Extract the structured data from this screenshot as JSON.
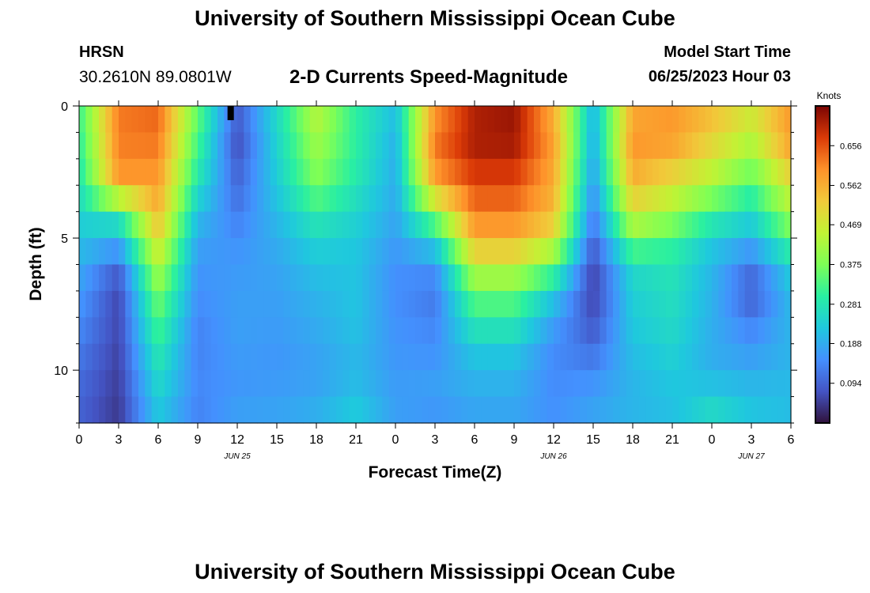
{
  "header": {
    "title": "University of Southern Mississippi Ocean Cube",
    "station": "HRSN",
    "coords": "30.2610N  89.0801W",
    "subtitle": "2-D Currents Speed-Magnitude",
    "model_start_label": "Model Start Time",
    "model_start_value": "06/25/2023 Hour 03"
  },
  "footer": {
    "title": "University of Southern Mississippi Ocean Cube"
  },
  "chart_data": {
    "type": "heatmap",
    "xlabel": "Forecast Time(Z)",
    "ylabel": "Depth (ft)",
    "x_ticks": [
      "0",
      "3",
      "6",
      "9",
      "12",
      "15",
      "18",
      "21",
      "0",
      "3",
      "6",
      "9",
      "12",
      "15",
      "18",
      "21",
      "0",
      "3",
      "6"
    ],
    "x_hours_range": [
      0,
      54
    ],
    "y_range": [
      0,
      12
    ],
    "y_ticks": [
      "0",
      "5",
      "10"
    ],
    "date_labels": [
      {
        "text": "JUN 25",
        "hour": 12
      },
      {
        "text": "JUN 26",
        "hour": 36
      },
      {
        "text": "JUN 27",
        "hour": 51
      }
    ],
    "colorbar": {
      "label": "Knots",
      "ticks": [
        "0.094",
        "0.188",
        "0.281",
        "0.375",
        "0.469",
        "0.562",
        "0.656"
      ],
      "range": [
        0,
        0.75
      ]
    },
    "columns_hours": [
      0,
      3,
      6,
      9,
      12,
      15,
      18,
      21,
      24,
      27,
      30,
      33,
      36,
      39,
      42,
      45,
      48,
      51,
      54
    ],
    "row_depths_ft": [
      0,
      1,
      2,
      3,
      4,
      5,
      6,
      7,
      8,
      9,
      10,
      11,
      12
    ],
    "grid_speed_knots": [
      [
        0.32,
        0.62,
        0.64,
        0.36,
        0.1,
        0.26,
        0.45,
        0.3,
        0.22,
        0.58,
        0.7,
        0.72,
        0.55,
        0.2,
        0.55,
        0.58,
        0.55,
        0.48,
        0.58
      ],
      [
        0.3,
        0.62,
        0.63,
        0.33,
        0.06,
        0.25,
        0.42,
        0.3,
        0.2,
        0.62,
        0.72,
        0.73,
        0.58,
        0.19,
        0.6,
        0.6,
        0.52,
        0.45,
        0.6
      ],
      [
        0.29,
        0.61,
        0.61,
        0.31,
        0.08,
        0.24,
        0.4,
        0.3,
        0.19,
        0.62,
        0.7,
        0.7,
        0.58,
        0.18,
        0.58,
        0.55,
        0.48,
        0.4,
        0.55
      ],
      [
        0.27,
        0.58,
        0.58,
        0.27,
        0.1,
        0.23,
        0.37,
        0.28,
        0.19,
        0.56,
        0.66,
        0.66,
        0.56,
        0.16,
        0.55,
        0.48,
        0.42,
        0.33,
        0.48
      ],
      [
        0.25,
        0.3,
        0.56,
        0.22,
        0.12,
        0.21,
        0.3,
        0.25,
        0.18,
        0.4,
        0.62,
        0.62,
        0.55,
        0.13,
        0.47,
        0.42,
        0.32,
        0.26,
        0.42
      ],
      [
        0.22,
        0.21,
        0.5,
        0.18,
        0.15,
        0.19,
        0.25,
        0.23,
        0.17,
        0.26,
        0.56,
        0.56,
        0.48,
        0.1,
        0.38,
        0.32,
        0.24,
        0.2,
        0.34
      ],
      [
        0.19,
        0.1,
        0.44,
        0.16,
        0.16,
        0.18,
        0.22,
        0.22,
        0.15,
        0.16,
        0.46,
        0.46,
        0.36,
        0.06,
        0.26,
        0.28,
        0.2,
        0.12,
        0.25
      ],
      [
        0.17,
        0.06,
        0.38,
        0.15,
        0.17,
        0.17,
        0.2,
        0.22,
        0.15,
        0.12,
        0.36,
        0.36,
        0.24,
        0.05,
        0.24,
        0.27,
        0.2,
        0.08,
        0.21
      ],
      [
        0.15,
        0.06,
        0.34,
        0.14,
        0.17,
        0.17,
        0.19,
        0.22,
        0.15,
        0.13,
        0.3,
        0.3,
        0.18,
        0.07,
        0.23,
        0.26,
        0.19,
        0.12,
        0.2
      ],
      [
        0.13,
        0.06,
        0.3,
        0.13,
        0.17,
        0.16,
        0.18,
        0.21,
        0.16,
        0.15,
        0.24,
        0.24,
        0.15,
        0.1,
        0.22,
        0.25,
        0.19,
        0.16,
        0.2
      ],
      [
        0.11,
        0.05,
        0.27,
        0.14,
        0.16,
        0.16,
        0.17,
        0.2,
        0.16,
        0.16,
        0.2,
        0.2,
        0.14,
        0.14,
        0.2,
        0.23,
        0.19,
        0.18,
        0.2
      ],
      [
        0.1,
        0.05,
        0.24,
        0.14,
        0.16,
        0.17,
        0.18,
        0.22,
        0.17,
        0.18,
        0.19,
        0.19,
        0.15,
        0.17,
        0.2,
        0.22,
        0.24,
        0.22,
        0.21
      ],
      [
        0.09,
        0.04,
        0.22,
        0.13,
        0.18,
        0.18,
        0.2,
        0.24,
        0.17,
        0.14,
        0.17,
        0.17,
        0.15,
        0.18,
        0.2,
        0.21,
        0.27,
        0.22,
        0.21
      ]
    ]
  }
}
